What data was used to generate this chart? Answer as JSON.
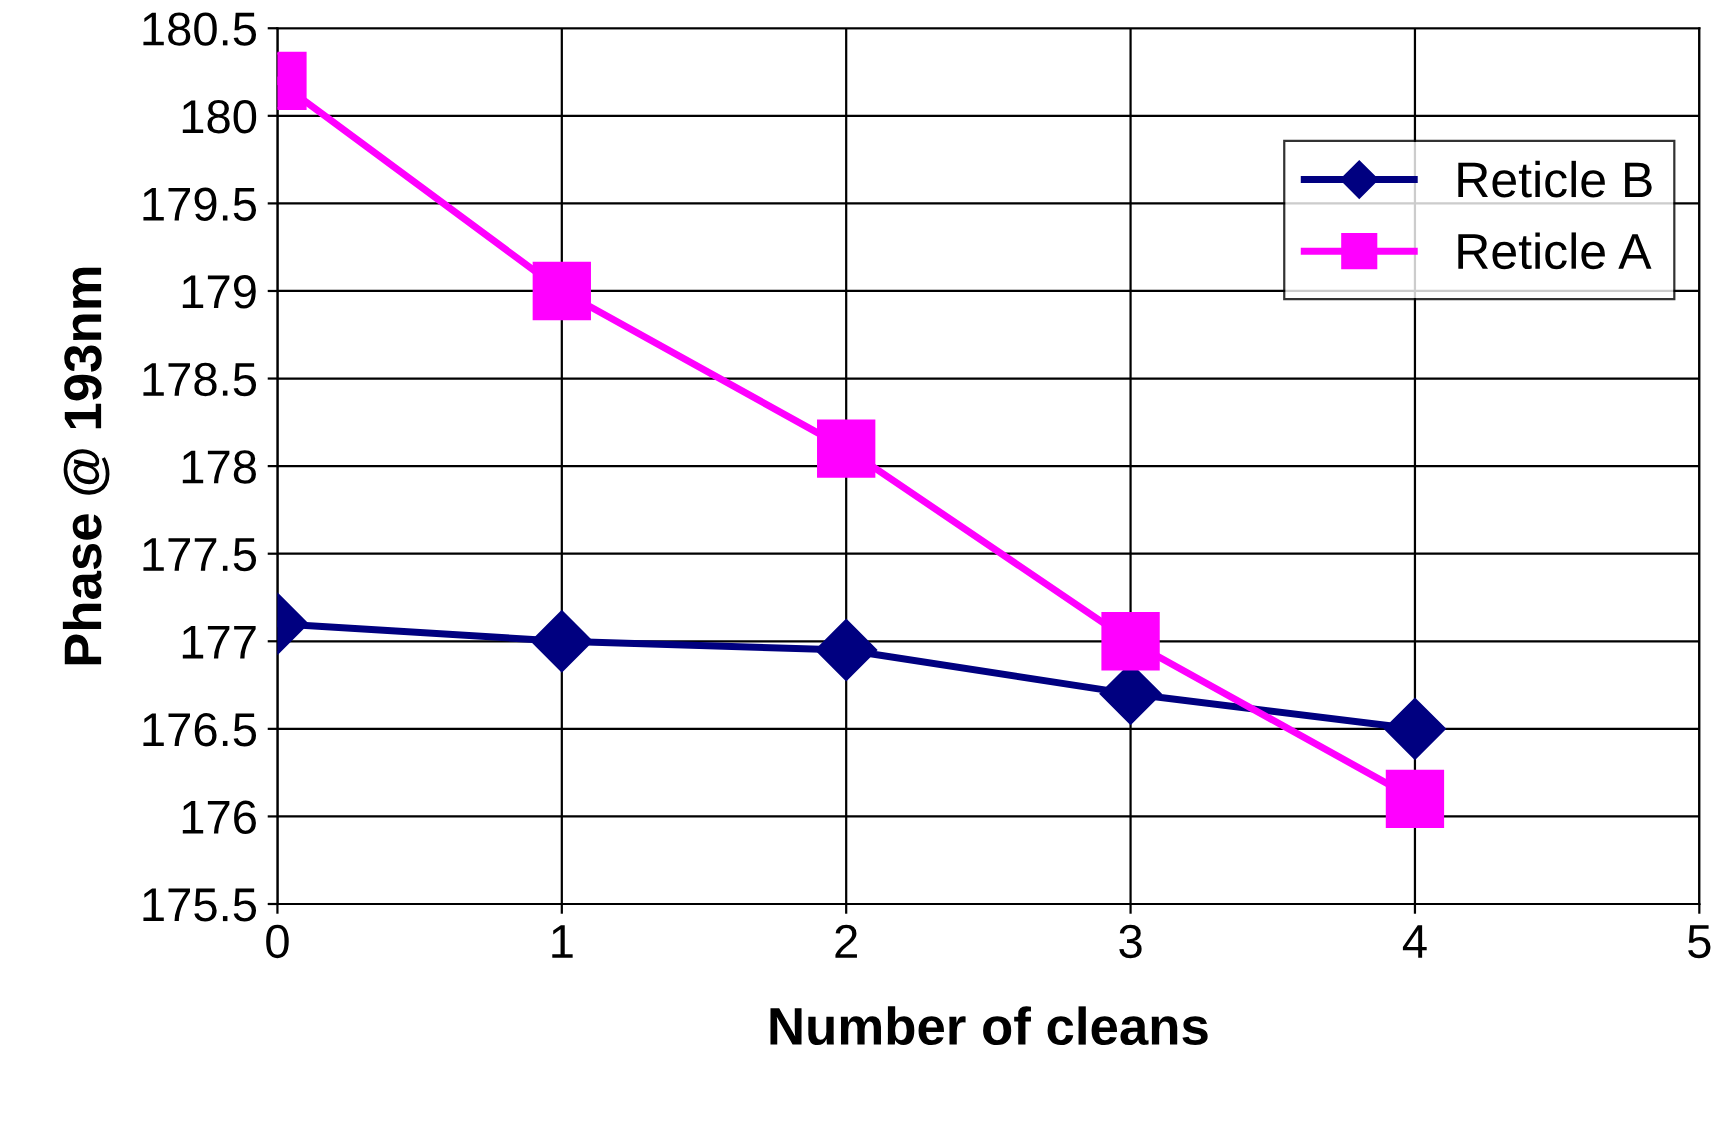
{
  "chart_data": {
    "type": "line",
    "xlabel": "Number of cleans",
    "ylabel": "Phase @ 193nm",
    "x": [
      0,
      1,
      2,
      3,
      4
    ],
    "series": [
      {
        "name": "Reticle B",
        "color": "#000080",
        "marker": "diamond",
        "values": [
          177.1,
          177.0,
          176.95,
          176.7,
          176.5
        ]
      },
      {
        "name": "Reticle A",
        "color": "#ff00ff",
        "marker": "square",
        "values": [
          180.2,
          179.0,
          178.1,
          177.0,
          176.1
        ]
      }
    ],
    "xlim": [
      0,
      5
    ],
    "xticks": [
      0,
      1,
      2,
      3,
      4,
      5
    ],
    "ylim": [
      175.5,
      180.5
    ],
    "yticks": [
      175.5,
      176,
      176.5,
      177,
      177.5,
      178,
      178.5,
      179,
      179.5,
      180,
      180.5
    ],
    "grid": true,
    "legend": "top right",
    "line_style": "solid"
  }
}
